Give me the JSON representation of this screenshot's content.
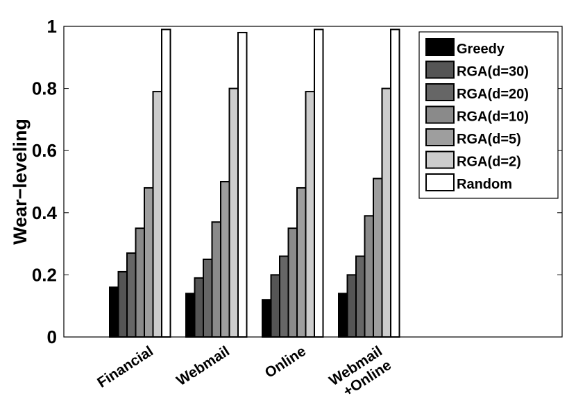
{
  "chart_data": {
    "type": "bar",
    "ylabel": "Wear−leveling",
    "ylim": [
      0,
      1
    ],
    "yticks": [
      "0",
      "0.2",
      "0.4",
      "0.6",
      "0.8",
      "1"
    ],
    "grid": false,
    "legend_position": "top-right",
    "categories": [
      [
        "Financial"
      ],
      [
        "Webmail"
      ],
      [
        "Online"
      ],
      [
        "Webmail",
        "+Online"
      ]
    ],
    "series": [
      {
        "name": "Greedy",
        "color": "#000000",
        "values": [
          0.16,
          0.14,
          0.12,
          0.14
        ]
      },
      {
        "name": "RGA(d=30)",
        "color": "#555555",
        "values": [
          0.21,
          0.19,
          0.2,
          0.2
        ]
      },
      {
        "name": "RGA(d=20)",
        "color": "#666666",
        "values": [
          0.27,
          0.25,
          0.26,
          0.26
        ]
      },
      {
        "name": "RGA(d=10)",
        "color": "#8a8a8a",
        "values": [
          0.35,
          0.37,
          0.35,
          0.39
        ]
      },
      {
        "name": "RGA(d=5)",
        "color": "#9e9e9e",
        "values": [
          0.48,
          0.5,
          0.48,
          0.51
        ]
      },
      {
        "name": "RGA(d=2)",
        "color": "#cccccc",
        "values": [
          0.79,
          0.8,
          0.79,
          0.8
        ]
      },
      {
        "name": "Random",
        "color": "#ffffff",
        "values": [
          0.99,
          0.98,
          0.99,
          0.99
        ]
      }
    ]
  }
}
